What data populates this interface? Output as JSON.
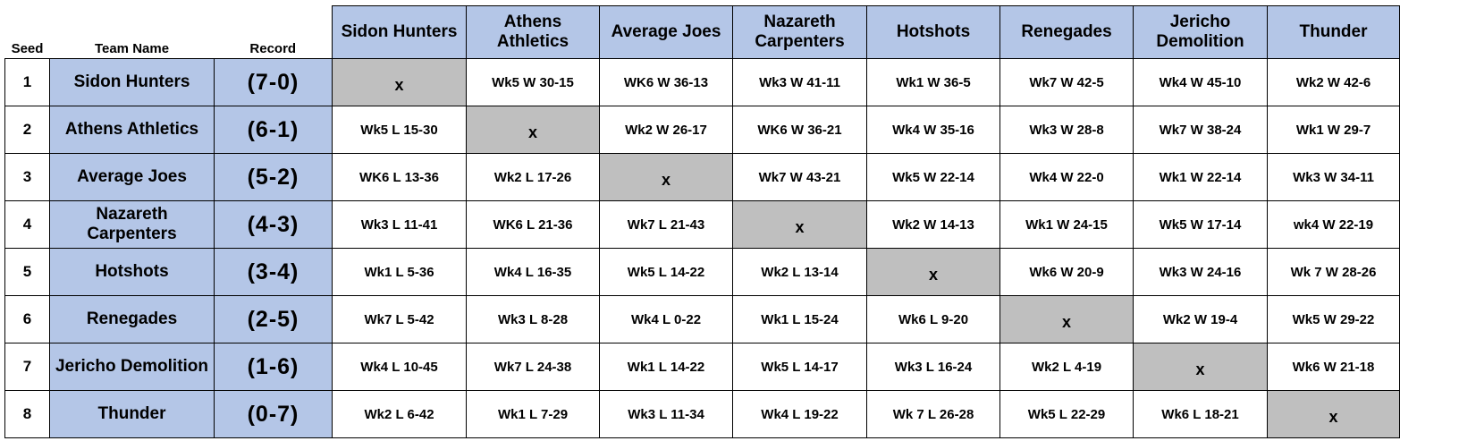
{
  "headers": {
    "seed": "Seed",
    "team_name": "Team Name",
    "record": "Record",
    "opponents": [
      "Sidon Hunters",
      "Athens Athletics",
      "Average Joes",
      "Nazareth Carpenters",
      "Hotshots",
      "Renegades",
      "Jericho Demolition",
      "Thunder"
    ]
  },
  "rows": [
    {
      "seed": "1",
      "team": "Sidon Hunters",
      "record": "(7-0)",
      "results": [
        "x",
        "Wk5 W 30-15",
        "WK6 W 36-13",
        "Wk3 W 41-11",
        "Wk1 W 36-5",
        "Wk7 W 42-5",
        "Wk4 W 45-10",
        "Wk2 W 42-6"
      ]
    },
    {
      "seed": "2",
      "team": "Athens Athletics",
      "record": "(6-1)",
      "results": [
        "Wk5 L 15-30",
        "x",
        "Wk2 W 26-17",
        "WK6 W 36-21",
        "Wk4 W 35-16",
        "Wk3 W 28-8",
        "Wk7 W 38-24",
        "Wk1 W 29-7"
      ]
    },
    {
      "seed": "3",
      "team": "Average Joes",
      "record": "(5-2)",
      "results": [
        "WK6 L 13-36",
        "Wk2 L 17-26",
        "x",
        "Wk7 W 43-21",
        "Wk5 W 22-14",
        "Wk4 W 22-0",
        "Wk1 W 22-14",
        "Wk3 W 34-11"
      ]
    },
    {
      "seed": "4",
      "team": "Nazareth Carpenters",
      "record": "(4-3)",
      "results": [
        "Wk3 L 11-41",
        "WK6 L 21-36",
        "Wk7 L 21-43",
        "x",
        "Wk2 W 14-13",
        "Wk1 W 24-15",
        "Wk5 W 17-14",
        "wk4 W 22-19"
      ]
    },
    {
      "seed": "5",
      "team": "Hotshots",
      "record": "(3-4)",
      "results": [
        "Wk1 L 5-36",
        "Wk4 L 16-35",
        "Wk5 L 14-22",
        "Wk2 L 13-14",
        "x",
        "Wk6 W 20-9",
        "Wk3 W 24-16",
        "Wk 7 W 28-26"
      ]
    },
    {
      "seed": "6",
      "team": "Renegades",
      "record": "(2-5)",
      "results": [
        "Wk7 L 5-42",
        "Wk3 L 8-28",
        "Wk4 L 0-22",
        "Wk1 L 15-24",
        "Wk6 L 9-20",
        "x",
        "Wk2 W 19-4",
        "Wk5 W 29-22"
      ]
    },
    {
      "seed": "7",
      "team": "Jericho Demolition",
      "record": "(1-6)",
      "results": [
        "Wk4 L 10-45",
        "Wk7 L 24-38",
        "Wk1 L 14-22",
        "Wk5 L 14-17",
        "Wk3 L 16-24",
        "Wk2 L 4-19",
        "x",
        "Wk6 W 21-18"
      ]
    },
    {
      "seed": "8",
      "team": "Thunder",
      "record": "(0-7)",
      "results": [
        "Wk2 L 6-42",
        "Wk1 L 7-29",
        "Wk3 L 11-34",
        "Wk4 L 19-22",
        "Wk 7 L 26-28",
        "Wk5 L 22-29",
        "Wk6 L 18-21",
        "x"
      ]
    }
  ],
  "colors": {
    "header_fill": "#b4c6e7",
    "self_match_fill": "#bfbfbf",
    "cell_fill": "#ffffff"
  }
}
